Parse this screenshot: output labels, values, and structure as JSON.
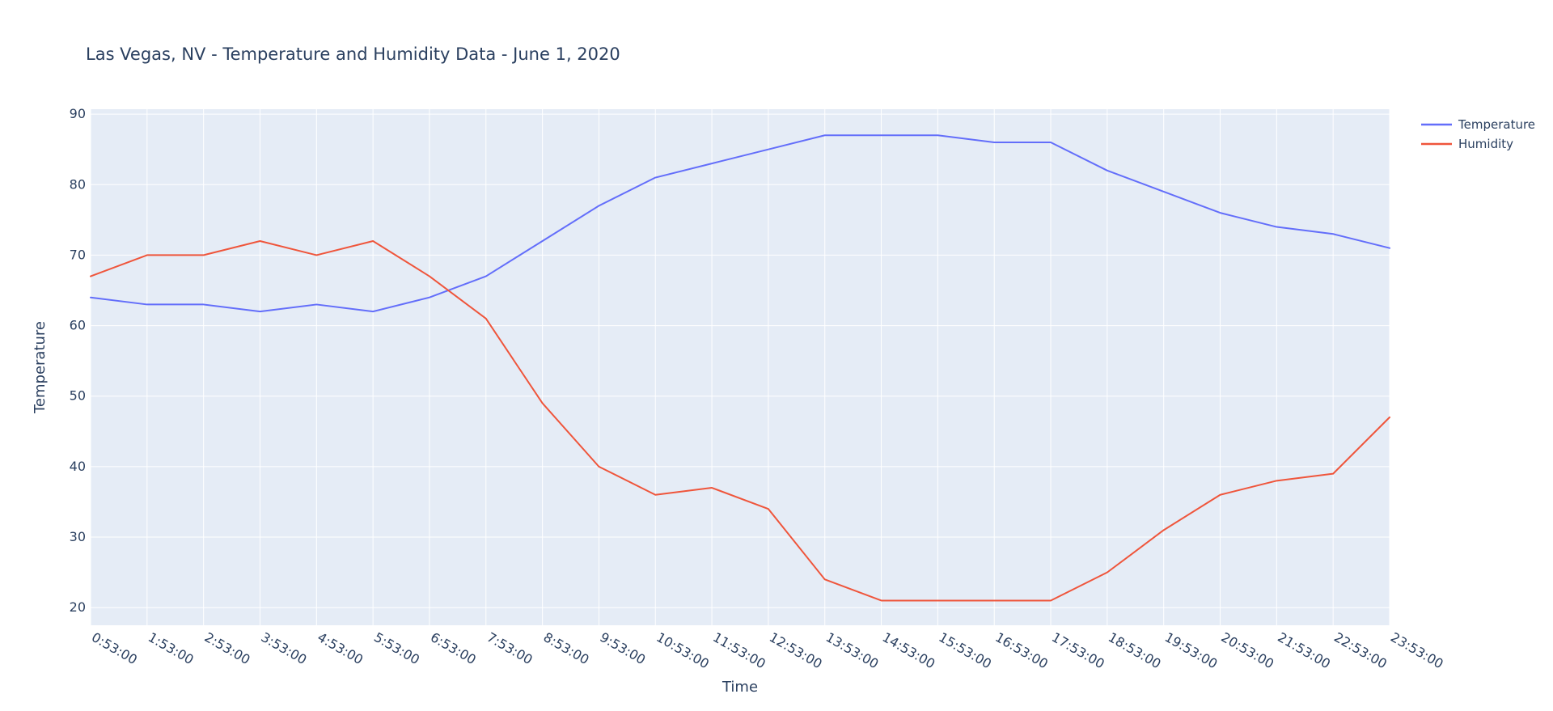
{
  "chart_data": {
    "type": "line",
    "title": "Las Vegas, NV - Temperature and Humidity Data - June 1, 2020",
    "xlabel": "Time",
    "ylabel": "Temperature",
    "categories": [
      "0:53:00",
      "1:53:00",
      "2:53:00",
      "3:53:00",
      "4:53:00",
      "5:53:00",
      "6:53:00",
      "7:53:00",
      "8:53:00",
      "9:53:00",
      "10:53:00",
      "11:53:00",
      "12:53:00",
      "13:53:00",
      "14:53:00",
      "15:53:00",
      "16:53:00",
      "17:53:00",
      "18:53:00",
      "19:53:00",
      "20:53:00",
      "21:53:00",
      "22:53:00",
      "23:53:00"
    ],
    "series": [
      {
        "name": "Temperature",
        "color": "#636efa",
        "values": [
          64,
          63,
          63,
          62,
          63,
          62,
          64,
          67,
          72,
          77,
          81,
          83,
          85,
          87,
          87,
          87,
          86,
          86,
          82,
          79,
          76,
          74,
          73,
          71
        ]
      },
      {
        "name": "Humidity",
        "color": "#ef553b",
        "values": [
          67,
          70,
          70,
          72,
          70,
          72,
          67,
          61,
          49,
          40,
          36,
          37,
          34,
          24,
          21,
          21,
          21,
          21,
          25,
          31,
          36,
          38,
          39,
          47
        ]
      }
    ],
    "ylim": [
      17.5,
      90.7
    ],
    "yticks": [
      20,
      30,
      40,
      50,
      60,
      70,
      80,
      90
    ],
    "grid": true,
    "plot_bg": "#e5ecf6",
    "grid_color": "#ffffff",
    "legend_position": "top-right"
  }
}
